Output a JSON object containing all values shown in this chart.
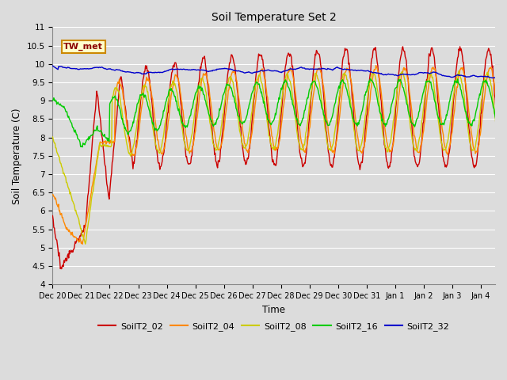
{
  "title": "Soil Temperature Set 2",
  "xlabel": "Time",
  "ylabel": "Soil Temperature (C)",
  "ylim": [
    4.0,
    11.0
  ],
  "yticks": [
    4.0,
    4.5,
    5.0,
    5.5,
    6.0,
    6.5,
    7.0,
    7.5,
    8.0,
    8.5,
    9.0,
    9.5,
    10.0,
    10.5,
    11.0
  ],
  "date_labels": [
    "Dec 20",
    "Dec 21",
    "Dec 22",
    "Dec 23",
    "Dec 24",
    "Dec 25",
    "Dec 26",
    "Dec 27",
    "Dec 28",
    "Dec 29",
    "Dec 30",
    "Dec 31",
    "Jan 1",
    "Jan 2",
    "Jan 3",
    "Jan 4"
  ],
  "colors": {
    "SoilT2_02": "#cc0000",
    "SoilT2_04": "#ff8800",
    "SoilT2_08": "#cccc00",
    "SoilT2_16": "#00cc00",
    "SoilT2_32": "#0000cc"
  },
  "annotation_text": "TW_met",
  "plot_bg_color": "#dcdcdc",
  "grid_color": "#ffffff",
  "linewidth": 1.0,
  "figsize": [
    6.4,
    4.8
  ],
  "dpi": 100
}
